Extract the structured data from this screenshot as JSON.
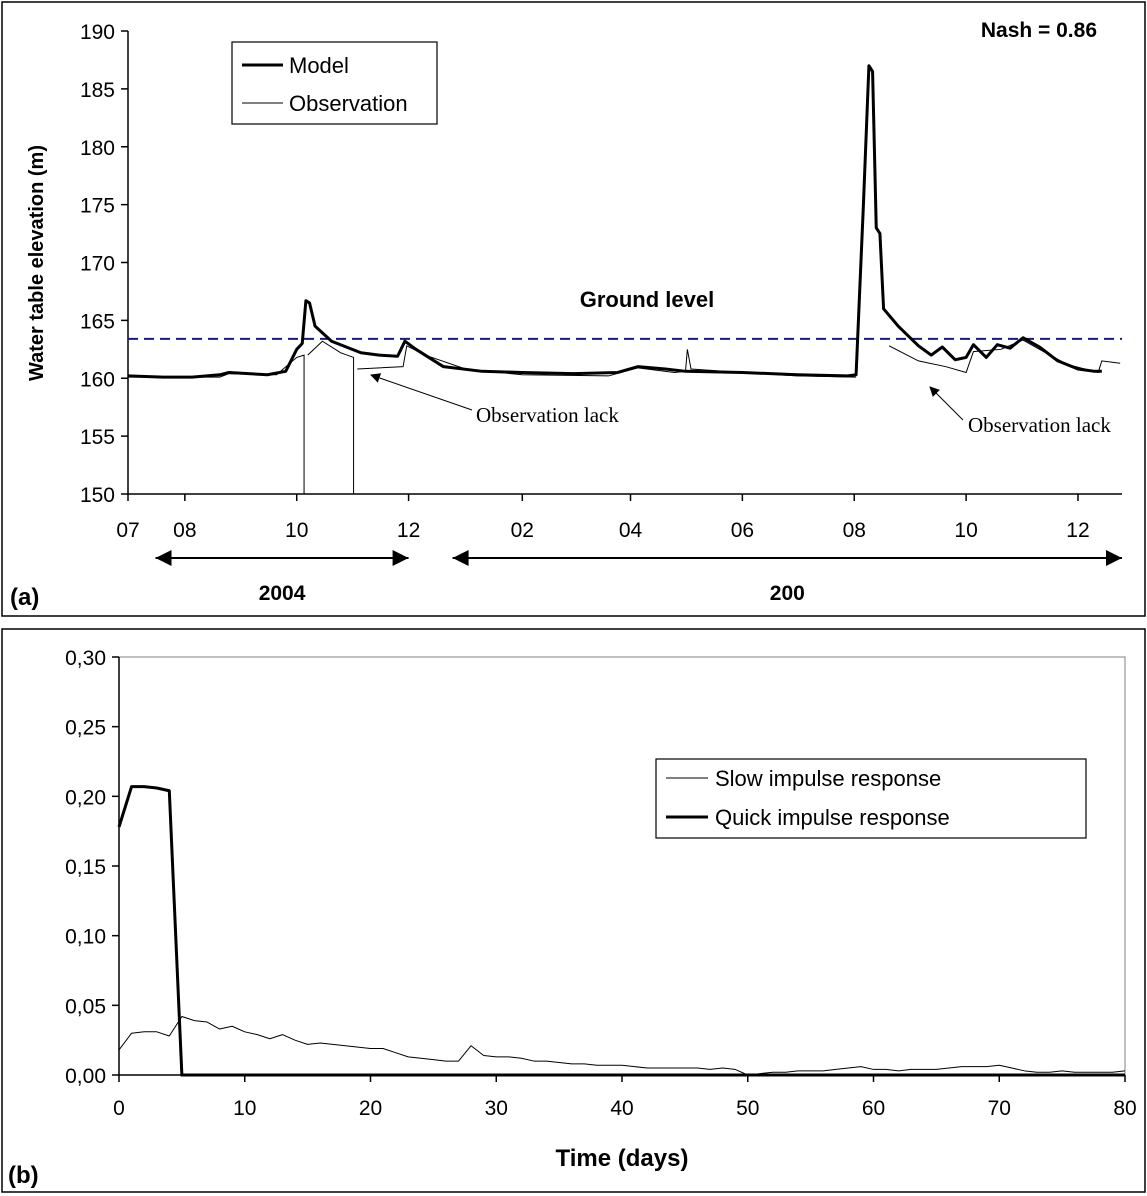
{
  "chart_data": [
    {
      "type": "line",
      "panel_label": "(a)",
      "ylabel": "Water table elevation (m)",
      "ylim": [
        150,
        190
      ],
      "yticks": [
        150,
        155,
        160,
        165,
        170,
        175,
        180,
        185,
        190
      ],
      "xticks": [
        "07",
        "08",
        "10",
        "12",
        "02",
        "04",
        "06",
        "08",
        "10",
        "12"
      ],
      "x_domain": [
        "2004-07-01",
        "2005-12-25"
      ],
      "x_tick_dates": [
        "2004-07-01",
        "2004-08-01",
        "2004-10-01",
        "2004-12-01",
        "2005-02-01",
        "2005-04-01",
        "2005-06-01",
        "2005-08-01",
        "2005-10-01",
        "2005-12-01"
      ],
      "annotations": {
        "nash": "Nash = 0.86",
        "ground_level": "Ground level",
        "ground_level_value": 163.4,
        "lack1": "Observation lack",
        "lack2": "Observation lack",
        "year1": "2004",
        "year2": "200"
      },
      "year_spans": [
        {
          "label_key": "year1",
          "from": "2004-07-16",
          "to": "2004-12-01"
        },
        {
          "label_key": "year2",
          "from": "2004-12-25",
          "to": "2005-12-25"
        }
      ],
      "legend": {
        "position": "top-left",
        "model": "Model",
        "observation": "Observation"
      },
      "series": [
        {
          "name": "Model",
          "style": "thick",
          "points": [
            [
              "2004-07-01",
              160.2
            ],
            [
              "2004-07-20",
              160.1
            ],
            [
              "2004-08-05",
              160.1
            ],
            [
              "2004-08-20",
              160.3
            ],
            [
              "2004-08-25",
              160.5
            ],
            [
              "2004-09-15",
              160.3
            ],
            [
              "2004-09-25",
              160.6
            ],
            [
              "2004-10-01",
              162.5
            ],
            [
              "2004-10-04",
              163.0
            ],
            [
              "2004-10-06",
              166.7
            ],
            [
              "2004-10-08",
              166.5
            ],
            [
              "2004-10-11",
              164.5
            ],
            [
              "2004-10-20",
              163.2
            ],
            [
              "2004-11-05",
              162.2
            ],
            [
              "2004-11-15",
              162.0
            ],
            [
              "2004-11-25",
              161.9
            ],
            [
              "2004-11-29",
              163.2
            ],
            [
              "2004-12-05",
              162.5
            ],
            [
              "2004-12-20",
              161.0
            ],
            [
              "2005-01-10",
              160.6
            ],
            [
              "2005-02-01",
              160.5
            ],
            [
              "2005-03-01",
              160.4
            ],
            [
              "2005-03-25",
              160.5
            ],
            [
              "2005-04-05",
              161.0
            ],
            [
              "2005-04-20",
              160.8
            ],
            [
              "2005-05-01",
              160.6
            ],
            [
              "2005-06-01",
              160.5
            ],
            [
              "2005-07-01",
              160.3
            ],
            [
              "2005-07-28",
              160.2
            ],
            [
              "2005-08-02",
              160.3
            ],
            [
              "2005-08-06",
              175.0
            ],
            [
              "2005-08-09",
              187.0
            ],
            [
              "2005-08-11",
              186.5
            ],
            [
              "2005-08-13",
              173.0
            ],
            [
              "2005-08-15",
              172.5
            ],
            [
              "2005-08-17",
              166.0
            ],
            [
              "2005-08-25",
              164.5
            ],
            [
              "2005-09-05",
              162.8
            ],
            [
              "2005-09-12",
              162.0
            ],
            [
              "2005-09-18",
              162.7
            ],
            [
              "2005-09-25",
              161.6
            ],
            [
              "2005-10-01",
              161.8
            ],
            [
              "2005-10-05",
              162.9
            ],
            [
              "2005-10-12",
              161.8
            ],
            [
              "2005-10-18",
              162.9
            ],
            [
              "2005-10-25",
              162.6
            ],
            [
              "2005-11-01",
              163.5
            ],
            [
              "2005-11-10",
              162.7
            ],
            [
              "2005-11-20",
              161.5
            ],
            [
              "2005-12-01",
              160.8
            ],
            [
              "2005-12-10",
              160.6
            ],
            [
              "2005-12-14",
              160.6
            ]
          ]
        },
        {
          "name": "Observation",
          "style": "thin",
          "segments": [
            [
              [
                "2004-07-01",
                160.1
              ],
              [
                "2004-08-20",
                160.1
              ],
              [
                "2004-08-25",
                160.4
              ],
              [
                "2004-09-20",
                160.3
              ],
              [
                "2004-10-01",
                161.8
              ],
              [
                "2004-10-05",
                162.0
              ],
              [
                "2004-10-05",
                150.0
              ]
            ],
            [
              [
                "2004-10-07",
                162.0
              ],
              [
                "2004-10-15",
                163.2
              ],
              [
                "2004-10-25",
                162.2
              ],
              [
                "2004-11-01",
                161.8
              ],
              [
                "2004-11-01",
                150.0
              ]
            ],
            [
              [
                "2004-11-03",
                160.8
              ],
              [
                "2004-11-28",
                161.0
              ],
              [
                "2004-11-30",
                162.8
              ],
              [
                "2004-12-10",
                162.0
              ],
              [
                "2005-01-01",
                160.8
              ],
              [
                "2005-02-01",
                160.3
              ],
              [
                "2005-03-20",
                160.2
              ],
              [
                "2005-04-05",
                160.9
              ],
              [
                "2005-04-25",
                160.5
              ],
              [
                "2005-05-01",
                160.6
              ],
              [
                "2005-05-02",
                162.5
              ],
              [
                "2005-05-04",
                160.8
              ],
              [
                "2005-06-01",
                160.5
              ],
              [
                "2005-07-01",
                160.2
              ],
              [
                "2005-08-02",
                160.1
              ]
            ],
            [
              [
                "2005-08-20",
                162.8
              ],
              [
                "2005-09-05",
                161.5
              ],
              [
                "2005-09-20",
                161.0
              ],
              [
                "2005-10-01",
                160.5
              ],
              [
                "2005-10-05",
                162.3
              ],
              [
                "2005-10-20",
                162.5
              ],
              [
                "2005-11-01",
                163.3
              ],
              [
                "2005-11-10",
                162.5
              ],
              [
                "2005-11-25",
                161.2
              ],
              [
                "2005-12-12",
                160.5
              ],
              [
                "2005-12-14",
                161.5
              ],
              [
                "2005-12-24",
                161.3
              ]
            ]
          ]
        }
      ]
    },
    {
      "type": "line",
      "panel_label": "(b)",
      "xlabel": "Time (days)",
      "xlim": [
        0,
        80
      ],
      "ylim": [
        0,
        0.3
      ],
      "xticks": [
        "0",
        "10",
        "20",
        "30",
        "40",
        "50",
        "60",
        "70",
        "80"
      ],
      "yticks": [
        "0,00",
        "0,05",
        "0,10",
        "0,15",
        "0,20",
        "0,25",
        "0,30"
      ],
      "legend": {
        "position": "right",
        "slow": "Slow impulse response",
        "quick": "Quick impulse response"
      },
      "series": [
        {
          "name": "Slow impulse response",
          "style": "thin",
          "x": [
            0,
            1,
            2,
            3,
            4,
            5,
            6,
            7,
            8,
            9,
            10,
            11,
            12,
            13,
            14,
            15,
            16,
            17,
            18,
            19,
            20,
            21,
            22,
            23,
            24,
            25,
            26,
            27,
            28,
            29,
            30,
            31,
            32,
            33,
            34,
            35,
            36,
            37,
            38,
            39,
            40,
            41,
            42,
            43,
            44,
            45,
            46,
            47,
            48,
            49,
            50,
            51,
            52,
            53,
            54,
            55,
            56,
            57,
            58,
            59,
            60,
            61,
            62,
            63,
            64,
            65,
            66,
            67,
            68,
            69,
            70,
            71,
            72,
            73,
            74,
            75,
            76,
            77,
            78,
            79,
            80
          ],
          "y": [
            0.018,
            0.03,
            0.031,
            0.031,
            0.028,
            0.042,
            0.039,
            0.038,
            0.033,
            0.035,
            0.031,
            0.029,
            0.026,
            0.029,
            0.025,
            0.022,
            0.023,
            0.022,
            0.021,
            0.02,
            0.019,
            0.019,
            0.016,
            0.013,
            0.012,
            0.011,
            0.01,
            0.01,
            0.021,
            0.014,
            0.013,
            0.013,
            0.012,
            0.01,
            0.01,
            0.009,
            0.008,
            0.008,
            0.007,
            0.007,
            0.007,
            0.006,
            0.005,
            0.005,
            0.005,
            0.005,
            0.005,
            0.004,
            0.005,
            0.004,
            0.0,
            0.001,
            0.002,
            0.002,
            0.003,
            0.003,
            0.003,
            0.004,
            0.005,
            0.006,
            0.004,
            0.004,
            0.003,
            0.004,
            0.004,
            0.004,
            0.005,
            0.006,
            0.006,
            0.006,
            0.007,
            0.005,
            0.003,
            0.002,
            0.002,
            0.003,
            0.002,
            0.002,
            0.002,
            0.002,
            0.003
          ]
        },
        {
          "name": "Quick impulse response",
          "style": "thick",
          "x": [
            0,
            1,
            2,
            3,
            4,
            5,
            6,
            10,
            20,
            30,
            40,
            50,
            60,
            70,
            80
          ],
          "y": [
            0.178,
            0.207,
            0.207,
            0.206,
            0.204,
            0.0,
            0.0,
            0.0,
            0.0,
            0.0,
            0.0,
            0.0,
            0.0,
            0.0,
            0.0
          ]
        }
      ]
    }
  ]
}
